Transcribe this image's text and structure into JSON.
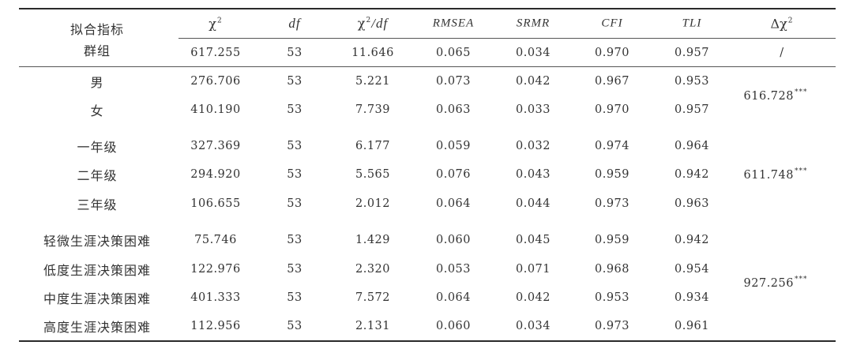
{
  "header": {
    "row_label_line1": "拟合指标",
    "row_label_line2": "群组",
    "col_chi": "χ",
    "col_chi_sup": "2",
    "col_df": "df",
    "col_chidf_chi": "χ",
    "col_chidf_sup": "2",
    "col_chidf_rest": "/df",
    "col_rmsea": "RMSEA",
    "col_srmr": "SRMR",
    "col_cfi": "CFI",
    "col_tli": "TLI",
    "col_delta": "Δχ",
    "col_delta_sup": "2"
  },
  "overall": {
    "chi2": "617.255",
    "df": "53",
    "chi2df": "11.646",
    "rmsea": "0.065",
    "srmr": "0.034",
    "cfi": "0.970",
    "tli": "0.957",
    "delta": "/"
  },
  "rows": [
    {
      "group": "男",
      "chi2": "276.706",
      "df": "53",
      "chi2df": "5.221",
      "rmsea": "0.073",
      "srmr": "0.042",
      "cfi": "0.967",
      "tli": "0.953"
    },
    {
      "group": "女",
      "chi2": "410.190",
      "df": "53",
      "chi2df": "7.739",
      "rmsea": "0.063",
      "srmr": "0.033",
      "cfi": "0.970",
      "tli": "0.957"
    },
    {
      "group": "一年级",
      "chi2": "327.369",
      "df": "53",
      "chi2df": "6.177",
      "rmsea": "0.059",
      "srmr": "0.032",
      "cfi": "0.974",
      "tli": "0.964"
    },
    {
      "group": "二年级",
      "chi2": "294.920",
      "df": "53",
      "chi2df": "5.565",
      "rmsea": "0.076",
      "srmr": "0.043",
      "cfi": "0.959",
      "tli": "0.942"
    },
    {
      "group": "三年级",
      "chi2": "106.655",
      "df": "53",
      "chi2df": "2.012",
      "rmsea": "0.064",
      "srmr": "0.044",
      "cfi": "0.973",
      "tli": "0.963"
    },
    {
      "group": "轻微生涯决策困难",
      "chi2": "75.746",
      "df": "53",
      "chi2df": "1.429",
      "rmsea": "0.060",
      "srmr": "0.045",
      "cfi": "0.959",
      "tli": "0.942"
    },
    {
      "group": "低度生涯决策困难",
      "chi2": "122.976",
      "df": "53",
      "chi2df": "2.320",
      "rmsea": "0.053",
      "srmr": "0.071",
      "cfi": "0.968",
      "tli": "0.954"
    },
    {
      "group": "中度生涯决策困难",
      "chi2": "401.333",
      "df": "53",
      "chi2df": "7.572",
      "rmsea": "0.064",
      "srmr": "0.042",
      "cfi": "0.953",
      "tli": "0.934"
    },
    {
      "group": "高度生涯决策困难",
      "chi2": "112.956",
      "df": "53",
      "chi2df": "2.131",
      "rmsea": "0.060",
      "srmr": "0.034",
      "cfi": "0.973",
      "tli": "0.961"
    }
  ],
  "deltas": [
    {
      "value": "616.728",
      "sig": "***"
    },
    {
      "value": "611.748",
      "sig": "***"
    },
    {
      "value": "927.256",
      "sig": "***"
    }
  ]
}
